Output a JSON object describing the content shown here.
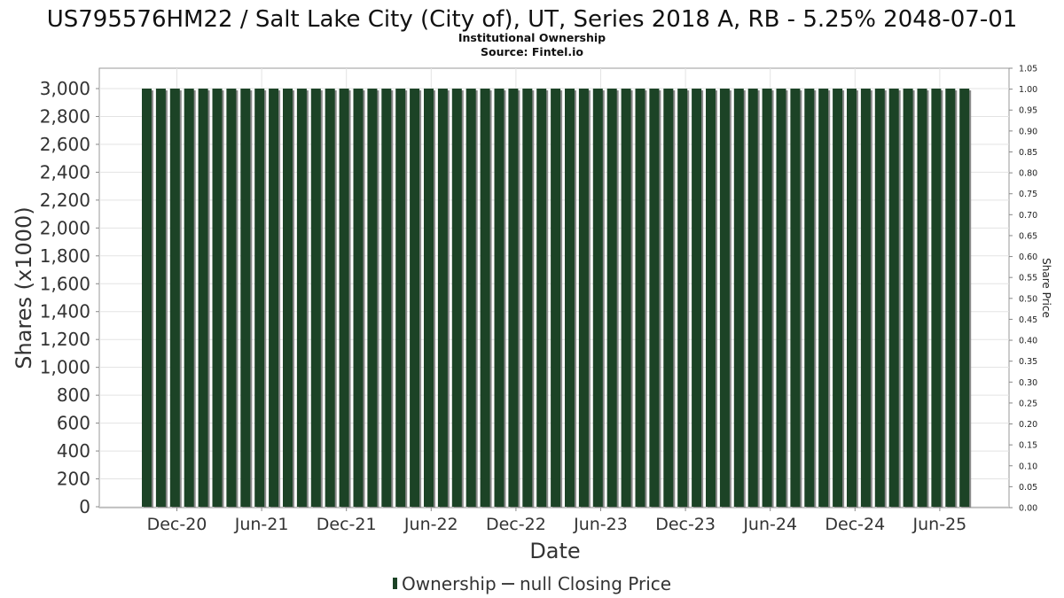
{
  "chart_data": {
    "type": "bar",
    "title": "US795576HM22 / Salt Lake City (City of), UT, Series 2018 A, RB - 5.25% 2048-07-01",
    "subtitle": "Institutional Ownership",
    "source": "Source: Fintel.io",
    "xlabel": "Date",
    "ylabel": "Shares (x1000)",
    "y2label": "Share Price",
    "ylim": [
      0,
      3000
    ],
    "y2lim": [
      0,
      1.05
    ],
    "yticks": [
      "0",
      "200",
      "400",
      "600",
      "800",
      "1,000",
      "1,200",
      "1,400",
      "1,600",
      "1,800",
      "2,000",
      "2,200",
      "2,400",
      "2,600",
      "2,800",
      "3,000"
    ],
    "y2ticks": [
      "0.00",
      "0.05",
      "0.10",
      "0.15",
      "0.20",
      "0.25",
      "0.30",
      "0.35",
      "0.40",
      "0.45",
      "0.50",
      "0.55",
      "0.60",
      "0.65",
      "0.70",
      "0.75",
      "0.80",
      "0.85",
      "0.90",
      "0.95",
      "1.00",
      "1.05"
    ],
    "xticks": [
      "Dec-20",
      "Jun-21",
      "Dec-21",
      "Jun-22",
      "Dec-22",
      "Jun-23",
      "Dec-23",
      "Jun-24",
      "Dec-24",
      "Jun-25"
    ],
    "bar_color": "#1c4326",
    "bar_shadow_color": "#8a8a8a",
    "grid": true,
    "legend_position": "bottom",
    "series": [
      {
        "name": "Ownership",
        "values": [
          3000,
          3000,
          3000,
          3000,
          3000,
          3000,
          3000,
          3000,
          3000,
          3000,
          3000,
          3000,
          3000,
          3000,
          3000,
          3000,
          3000,
          3000,
          3000,
          3000,
          3000,
          3000,
          3000,
          3000,
          3000,
          3000,
          3000,
          3000,
          3000,
          3000,
          3000,
          3000,
          3000,
          3000,
          3000,
          3000,
          3000,
          3000,
          3000,
          3000,
          3000,
          3000,
          3000,
          3000,
          3000,
          3000,
          3000,
          3000,
          3000,
          3000,
          3000,
          3000,
          3000,
          3000,
          3000,
          3000,
          3000,
          3000,
          3000
        ]
      }
    ],
    "legend": [
      {
        "label": "Ownership",
        "marker": "bar",
        "color": "#1c4326"
      },
      {
        "label": "null Closing Price",
        "marker": "line",
        "color": "#444444"
      }
    ]
  }
}
